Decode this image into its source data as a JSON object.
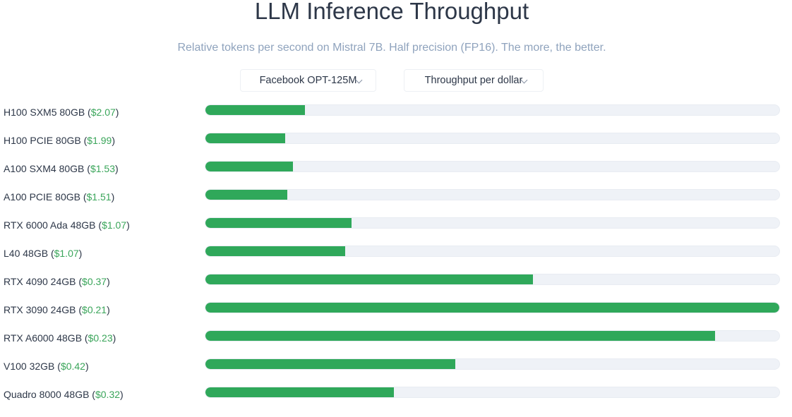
{
  "header": {
    "title": "LLM Inference Throughput",
    "subtitle": "Relative tokens per second on Mistral 7B. Half precision (FP16). The more, the better."
  },
  "controls": {
    "model_select": "Facebook OPT-125M",
    "metric_select": "Throughput per dollar"
  },
  "colors": {
    "bar": "#2fa85a",
    "track": "#eff2f7",
    "price": "#3aa55a"
  },
  "chart_data": {
    "type": "bar",
    "orientation": "horizontal",
    "title": "LLM Inference Throughput",
    "subtitle": "Relative tokens per second on Mistral 7B. Half precision (FP16). The more, the better.",
    "xlim": [
      0,
      1
    ],
    "grid": false,
    "categories": [
      {
        "gpu": "H100 SXM5 80GB",
        "price": "$2.07"
      },
      {
        "gpu": "H100 PCIE 80GB",
        "price": "$1.99"
      },
      {
        "gpu": "A100 SXM4 80GB",
        "price": "$1.53"
      },
      {
        "gpu": "A100 PCIE 80GB",
        "price": "$1.51"
      },
      {
        "gpu": "RTX 6000 Ada 48GB",
        "price": "$1.07"
      },
      {
        "gpu": "L40 48GB",
        "price": "$1.07"
      },
      {
        "gpu": "RTX 4090 24GB",
        "price": "$0.37"
      },
      {
        "gpu": "RTX 3090 24GB",
        "price": "$0.21"
      },
      {
        "gpu": "RTX A6000 48GB",
        "price": "$0.23"
      },
      {
        "gpu": "V100 32GB",
        "price": "$0.42"
      },
      {
        "gpu": "Quadro 8000 48GB",
        "price": "$0.32"
      }
    ],
    "values": [
      0.173,
      0.139,
      0.153,
      0.143,
      0.254,
      0.244,
      0.571,
      1.0,
      0.888,
      0.435,
      0.328
    ]
  }
}
